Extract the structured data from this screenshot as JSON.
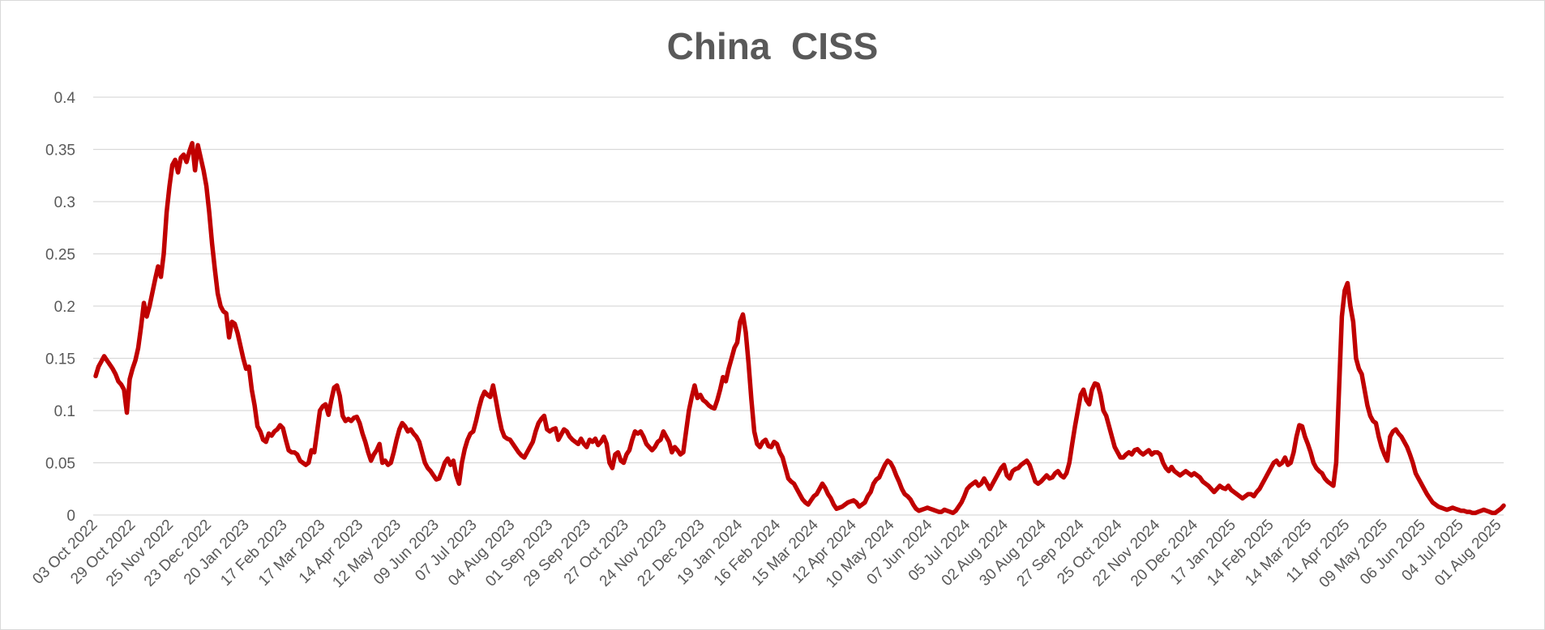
{
  "chart_data": {
    "type": "line",
    "title": "China  CISS",
    "xlabel": "",
    "ylabel": "",
    "ylim": [
      0,
      0.4
    ],
    "yticks": [
      "0",
      "0.05",
      "0.1",
      "0.15",
      "0.2",
      "0.25",
      "0.3",
      "0.35",
      "0.4"
    ],
    "xtick_labels": [
      "03 Oct 2022",
      "29 Oct 2022",
      "25 Nov 2022",
      "23 Dec 2022",
      "20 Jan 2023",
      "17 Feb 2023",
      "17 Mar 2023",
      "14 Apr 2023",
      "12 May 2023",
      "09 Jun 2023",
      "07 Jul 2023",
      "04 Aug 2023",
      "01 Sep 2023",
      "29 Sep 2023",
      "27 Oct 2023",
      "24 Nov 2023",
      "22 Dec 2023",
      "19 Jan 2024",
      "16 Feb 2024",
      "15 Mar 2024",
      "12 Apr 2024",
      "10 May 2024",
      "07 Jun 2024",
      "05 Jul 2024",
      "02 Aug 2024",
      "30 Aug 2024",
      "27 Sep 2024",
      "25 Oct 2024",
      "22 Nov 2024",
      "20 Dec 2024",
      "17 Jan 2025",
      "14 Feb 2025",
      "14 Mar 2025",
      "11 Apr 2025",
      "09 May 2025",
      "06 Jun 2025",
      "04 Jul 2025",
      "01 Aug 2025"
    ],
    "grid": true,
    "legend": "none",
    "series_color": "#c00000",
    "series": [
      {
        "x_range": [
          "2022-10-03",
          "2025-08-08"
        ],
        "values": [
          0.133,
          0.142,
          0.147,
          0.152,
          0.148,
          0.144,
          0.14,
          0.135,
          0.128,
          0.125,
          0.12,
          0.098,
          0.13,
          0.14,
          0.148,
          0.16,
          0.18,
          0.203,
          0.19,
          0.2,
          0.213,
          0.226,
          0.238,
          0.228,
          0.25,
          0.29,
          0.315,
          0.335,
          0.34,
          0.328,
          0.342,
          0.345,
          0.338,
          0.348,
          0.356,
          0.33,
          0.354,
          0.342,
          0.33,
          0.315,
          0.29,
          0.26,
          0.235,
          0.212,
          0.2,
          0.195,
          0.193,
          0.17,
          0.185,
          0.183,
          0.174,
          0.162,
          0.15,
          0.14,
          0.142,
          0.12,
          0.105,
          0.085,
          0.08,
          0.072,
          0.07,
          0.078,
          0.076,
          0.08,
          0.082,
          0.086,
          0.083,
          0.072,
          0.062,
          0.06,
          0.06,
          0.058,
          0.052,
          0.05,
          0.048,
          0.05,
          0.062,
          0.06,
          0.08,
          0.1,
          0.104,
          0.106,
          0.096,
          0.11,
          0.122,
          0.124,
          0.114,
          0.095,
          0.09,
          0.092,
          0.09,
          0.093,
          0.094,
          0.088,
          0.078,
          0.07,
          0.06,
          0.052,
          0.058,
          0.062,
          0.068,
          0.05,
          0.052,
          0.048,
          0.05,
          0.06,
          0.072,
          0.082,
          0.088,
          0.085,
          0.08,
          0.082,
          0.078,
          0.075,
          0.07,
          0.06,
          0.05,
          0.045,
          0.042,
          0.038,
          0.034,
          0.035,
          0.042,
          0.05,
          0.054,
          0.048,
          0.052,
          0.038,
          0.03,
          0.05,
          0.063,
          0.072,
          0.078,
          0.08,
          0.09,
          0.102,
          0.112,
          0.118,
          0.115,
          0.113,
          0.124,
          0.11,
          0.095,
          0.082,
          0.075,
          0.073,
          0.072,
          0.068,
          0.064,
          0.06,
          0.057,
          0.055,
          0.06,
          0.065,
          0.07,
          0.08,
          0.088,
          0.092,
          0.095,
          0.082,
          0.08,
          0.082,
          0.083,
          0.072,
          0.077,
          0.082,
          0.08,
          0.075,
          0.072,
          0.07,
          0.068,
          0.073,
          0.068,
          0.065,
          0.072,
          0.07,
          0.073,
          0.067,
          0.07,
          0.075,
          0.068,
          0.05,
          0.045,
          0.058,
          0.06,
          0.052,
          0.05,
          0.058,
          0.062,
          0.072,
          0.08,
          0.078,
          0.08,
          0.075,
          0.068,
          0.065,
          0.062,
          0.065,
          0.07,
          0.072,
          0.08,
          0.075,
          0.07,
          0.06,
          0.065,
          0.062,
          0.058,
          0.06,
          0.08,
          0.1,
          0.113,
          0.124,
          0.112,
          0.115,
          0.11,
          0.108,
          0.105,
          0.103,
          0.102,
          0.11,
          0.12,
          0.132,
          0.128,
          0.14,
          0.15,
          0.16,
          0.165,
          0.185,
          0.192,
          0.175,
          0.145,
          0.11,
          0.08,
          0.068,
          0.065,
          0.07,
          0.072,
          0.066,
          0.065,
          0.07,
          0.068,
          0.06,
          0.055,
          0.045,
          0.035,
          0.032,
          0.03,
          0.025,
          0.02,
          0.015,
          0.012,
          0.01,
          0.014,
          0.018,
          0.02,
          0.025,
          0.03,
          0.026,
          0.02,
          0.016,
          0.01,
          0.006,
          0.007,
          0.008,
          0.01,
          0.012,
          0.013,
          0.014,
          0.012,
          0.008,
          0.01,
          0.012,
          0.018,
          0.022,
          0.03,
          0.034,
          0.036,
          0.042,
          0.048,
          0.052,
          0.05,
          0.045,
          0.038,
          0.032,
          0.025,
          0.02,
          0.018,
          0.015,
          0.01,
          0.006,
          0.004,
          0.005,
          0.006,
          0.007,
          0.006,
          0.005,
          0.004,
          0.003,
          0.003,
          0.005,
          0.004,
          0.003,
          0.002,
          0.004,
          0.008,
          0.012,
          0.018,
          0.025,
          0.028,
          0.03,
          0.032,
          0.028,
          0.03,
          0.035,
          0.03,
          0.025,
          0.03,
          0.035,
          0.04,
          0.045,
          0.048,
          0.038,
          0.035,
          0.042,
          0.044,
          0.045,
          0.048,
          0.05,
          0.052,
          0.048,
          0.04,
          0.032,
          0.03,
          0.032,
          0.035,
          0.038,
          0.035,
          0.036,
          0.04,
          0.042,
          0.038,
          0.036,
          0.04,
          0.05,
          0.068,
          0.085,
          0.1,
          0.115,
          0.12,
          0.11,
          0.106,
          0.12,
          0.126,
          0.125,
          0.115,
          0.1,
          0.095,
          0.085,
          0.075,
          0.065,
          0.06,
          0.055,
          0.055,
          0.058,
          0.06,
          0.058,
          0.062,
          0.063,
          0.06,
          0.058,
          0.06,
          0.062,
          0.058,
          0.06,
          0.06,
          0.058,
          0.05,
          0.045,
          0.042,
          0.046,
          0.042,
          0.04,
          0.038,
          0.04,
          0.042,
          0.04,
          0.038,
          0.04,
          0.038,
          0.036,
          0.032,
          0.03,
          0.028,
          0.025,
          0.022,
          0.025,
          0.028,
          0.026,
          0.025,
          0.028,
          0.024,
          0.022,
          0.02,
          0.018,
          0.016,
          0.018,
          0.02,
          0.02,
          0.018,
          0.022,
          0.025,
          0.03,
          0.035,
          0.04,
          0.045,
          0.05,
          0.052,
          0.048,
          0.05,
          0.055,
          0.048,
          0.05,
          0.06,
          0.075,
          0.086,
          0.085,
          0.075,
          0.068,
          0.06,
          0.05,
          0.045,
          0.042,
          0.04,
          0.035,
          0.032,
          0.03,
          0.028,
          0.05,
          0.12,
          0.19,
          0.215,
          0.222,
          0.2,
          0.185,
          0.15,
          0.14,
          0.135,
          0.12,
          0.105,
          0.095,
          0.09,
          0.088,
          0.075,
          0.065,
          0.058,
          0.052,
          0.075,
          0.08,
          0.082,
          0.078,
          0.075,
          0.07,
          0.065,
          0.058,
          0.05,
          0.04,
          0.035,
          0.03,
          0.025,
          0.02,
          0.016,
          0.012,
          0.01,
          0.008,
          0.007,
          0.006,
          0.005,
          0.006,
          0.007,
          0.006,
          0.005,
          0.004,
          0.004,
          0.003,
          0.003,
          0.002,
          0.002,
          0.003,
          0.004,
          0.005,
          0.004,
          0.003,
          0.002,
          0.002,
          0.004,
          0.006,
          0.009
        ]
      }
    ]
  }
}
